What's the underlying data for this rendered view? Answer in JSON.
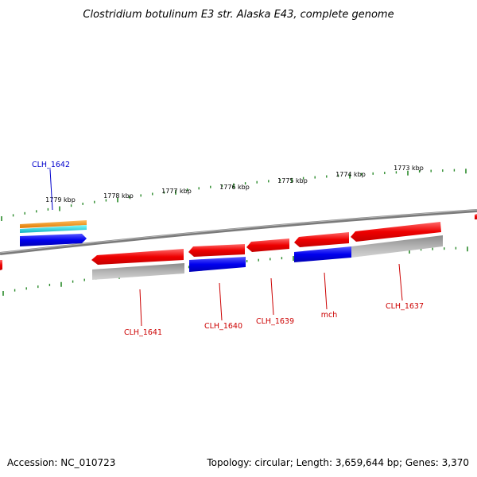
{
  "title": "Clostridium botulinum E3 str. Alaska E43, complete genome",
  "footer": {
    "accession": "Accession: NC_010723",
    "topology": "Topology: circular; Length: 3,659,644 bp; Genes: 3,370"
  },
  "colors": {
    "backbone": "#808080",
    "tick": "#2a8a2a",
    "forward_cds": "#0000ee",
    "reverse_cds": "#ee1111",
    "rna": "#ff9900",
    "rna2": "#22cccc",
    "gray_feature": "#aaaaaa",
    "label_red": "#cc0000",
    "label_blue": "#0000cc"
  },
  "tick_labels": [
    "1779 kbp",
    "1778 kbp",
    "1777 kbp",
    "1776 kbp",
    "1775 kbp",
    "1774 kbp",
    "1773 kbp"
  ],
  "gene_labels": [
    {
      "text": "CLH_1642",
      "color": "blue"
    },
    {
      "text": "CLH_1641",
      "color": "red"
    },
    {
      "text": "CLH_1640",
      "color": "red"
    },
    {
      "text": "CLH_1639",
      "color": "red"
    },
    {
      "text": "mch",
      "color": "red"
    },
    {
      "text": "CLH_1637",
      "color": "red"
    }
  ]
}
